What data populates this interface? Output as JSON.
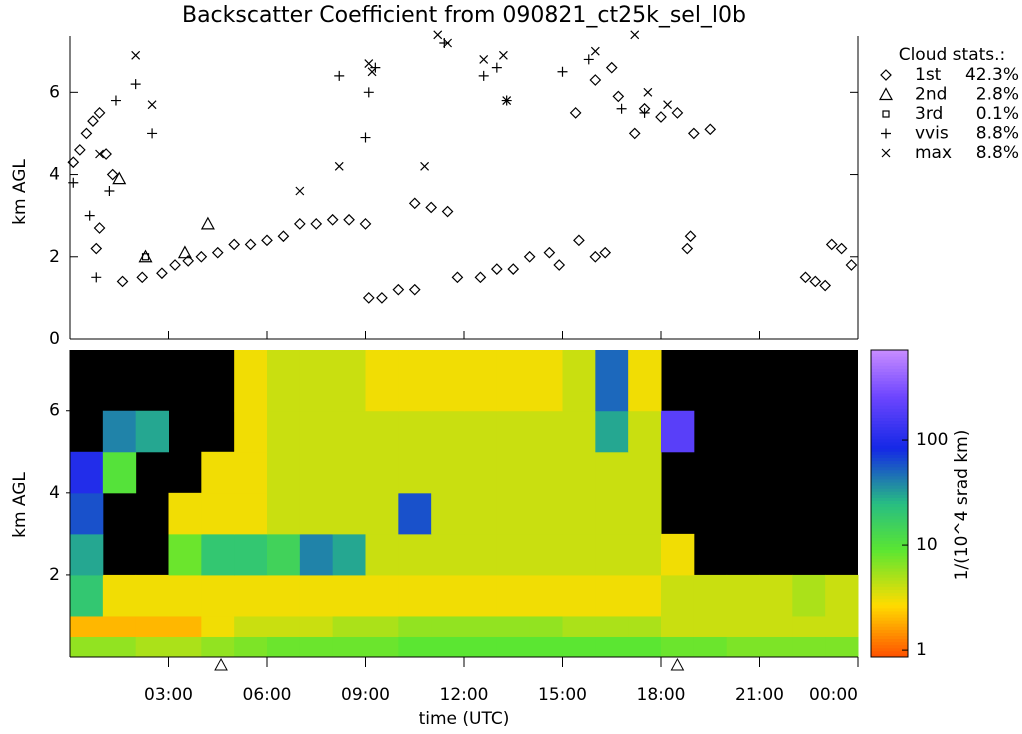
{
  "chart_data": [
    {
      "type": "scatter",
      "title": "Backscatter Coefficient from 090821_ct25k_sel_l0b",
      "ylabel": "km AGL",
      "xlim": [
        0,
        24
      ],
      "ylim": [
        0,
        7.37
      ],
      "yticks": [
        0,
        2,
        4,
        6
      ],
      "legend_title": "Cloud stats.:",
      "series": [
        {
          "name": "1st",
          "marker": "diamond",
          "share": "42.3%",
          "color": "#000000",
          "x": [
            0.1,
            0.3,
            0.5,
            0.7,
            0.9,
            1.1,
            1.3,
            0.8,
            0.9,
            1.6,
            2.2,
            2.8,
            3.2,
            3.6,
            4.0,
            4.5,
            5.0,
            5.5,
            6.0,
            6.5,
            7.0,
            7.5,
            8.0,
            8.5,
            9.0,
            9.1,
            9.5,
            10.0,
            10.5,
            10.5,
            11.0,
            11.5,
            11.8,
            12.5,
            13.0,
            13.5,
            14.0,
            14.6,
            14.9,
            15.5,
            16.0,
            16.3,
            15.4,
            16.0,
            16.5,
            16.7,
            17.2,
            17.5,
            18.0,
            18.5,
            19.0,
            19.5,
            18.8,
            18.9,
            22.4,
            22.7,
            23.0,
            23.2,
            23.5,
            23.8
          ],
          "y": [
            4.3,
            4.6,
            5.0,
            5.3,
            5.5,
            4.5,
            4.0,
            2.2,
            2.7,
            1.4,
            1.5,
            1.6,
            1.8,
            1.9,
            2.0,
            2.1,
            2.3,
            2.3,
            2.4,
            2.5,
            2.8,
            2.8,
            2.9,
            2.9,
            2.8,
            1.0,
            1.0,
            1.2,
            1.2,
            3.3,
            3.2,
            3.1,
            1.5,
            1.5,
            1.7,
            1.7,
            2.0,
            2.1,
            1.8,
            2.4,
            2.0,
            2.1,
            5.5,
            6.3,
            6.6,
            5.9,
            5.0,
            5.6,
            5.4,
            5.5,
            5.0,
            5.1,
            2.2,
            2.5,
            1.5,
            1.4,
            1.3,
            2.3,
            2.2,
            1.8
          ]
        },
        {
          "name": "2nd",
          "marker": "triangle",
          "share": "2.8%",
          "color": "#000000",
          "x": [
            1.5,
            2.3,
            3.5,
            4.2
          ],
          "y": [
            3.9,
            2.0,
            2.1,
            2.8
          ]
        },
        {
          "name": "3rd",
          "marker": "square",
          "share": "0.1%",
          "color": "#000000",
          "x": [
            2.3
          ],
          "y": [
            2.0
          ]
        },
        {
          "name": "vvis",
          "marker": "plus",
          "share": "8.8%",
          "color": "#000000",
          "x": [
            0.1,
            0.6,
            0.8,
            1.2,
            1.4,
            2.0,
            2.5,
            8.2,
            9.0,
            9.1,
            9.3,
            11.4,
            12.6,
            13.0,
            13.3,
            15.0,
            15.8,
            16.8,
            17.5
          ],
          "y": [
            3.8,
            3.0,
            1.5,
            3.6,
            5.8,
            6.2,
            5.0,
            6.4,
            4.9,
            6.0,
            6.6,
            7.2,
            6.4,
            6.6,
            5.8,
            6.5,
            6.8,
            5.6,
            5.5
          ]
        },
        {
          "name": "max",
          "marker": "cross",
          "share": "8.8%",
          "color": "#000000",
          "x": [
            0.9,
            2.0,
            2.5,
            7.0,
            8.2,
            9.1,
            9.2,
            10.8,
            11.2,
            11.5,
            12.6,
            13.2,
            13.3,
            16.0,
            17.2,
            17.6,
            18.2
          ],
          "y": [
            4.5,
            6.9,
            5.7,
            3.6,
            4.2,
            6.7,
            6.5,
            4.2,
            7.4,
            7.2,
            6.8,
            6.9,
            5.8,
            7.0,
            7.4,
            6.0,
            5.7
          ]
        }
      ]
    },
    {
      "type": "heatmap",
      "ylabel": "km AGL",
      "xlabel": "time (UTC)",
      "xlim": [
        0,
        24
      ],
      "ylim": [
        0,
        7.48
      ],
      "yticks": [
        2,
        4,
        6
      ],
      "xticks": [
        {
          "value": 3,
          "label": "03:00"
        },
        {
          "value": 6,
          "label": "06:00"
        },
        {
          "value": 9,
          "label": "09:00"
        },
        {
          "value": 12,
          "label": "12:00"
        },
        {
          "value": 15,
          "label": "15:00"
        },
        {
          "value": 18,
          "label": "18:00"
        },
        {
          "value": 21,
          "label": "21:00"
        },
        {
          "value": 24,
          "label": "00:00"
        }
      ],
      "xbins": [
        0,
        1,
        2,
        3,
        4,
        5,
        6,
        7,
        8,
        9,
        10,
        11,
        12,
        13,
        14,
        15,
        16,
        17,
        18,
        19,
        20,
        21,
        22,
        23,
        24
      ],
      "ybins": [
        0,
        0.5,
        1,
        2,
        3,
        4,
        5,
        6,
        7.48
      ],
      "z": [
        [
          6,
          6,
          5,
          5,
          6,
          7,
          8,
          8,
          8,
          8,
          9,
          9,
          9,
          9,
          9,
          9,
          9,
          9,
          8,
          8,
          7,
          7,
          7,
          7
        ],
        [
          2,
          2,
          2,
          2,
          3,
          4,
          4,
          4,
          5,
          5,
          6,
          6,
          6,
          6,
          6,
          5,
          5,
          5,
          4,
          4,
          4,
          4,
          4,
          4
        ],
        [
          20,
          3,
          3,
          3,
          3,
          3,
          3,
          3,
          3,
          3,
          3,
          3,
          3,
          3,
          3,
          3,
          3,
          3,
          4,
          4,
          4,
          4,
          5,
          4
        ],
        [
          30,
          null,
          null,
          8,
          20,
          20,
          15,
          40,
          30,
          4,
          4,
          4,
          4,
          4,
          4,
          4,
          4,
          4,
          3,
          null,
          null,
          null,
          null,
          null
        ],
        [
          60,
          null,
          null,
          3,
          3,
          3,
          4,
          4,
          4,
          4,
          60,
          4,
          4,
          4,
          4,
          4,
          4,
          4,
          null,
          null,
          null,
          null,
          null,
          null
        ],
        [
          100,
          10,
          null,
          null,
          3,
          3,
          4,
          4,
          4,
          4,
          4,
          4,
          4,
          4,
          4,
          4,
          4,
          4,
          null,
          null,
          null,
          null,
          null,
          null
        ],
        [
          null,
          40,
          30,
          null,
          null,
          3,
          4,
          4,
          4,
          4,
          4,
          4,
          4,
          4,
          4,
          4,
          30,
          4,
          200,
          null,
          null,
          null,
          null,
          null
        ],
        [
          null,
          null,
          null,
          null,
          null,
          3,
          4,
          4,
          4,
          3,
          3,
          3,
          3,
          3,
          3,
          4,
          50,
          3,
          null,
          null,
          null,
          null,
          null,
          null
        ]
      ],
      "markers": [
        4.6,
        18.5
      ],
      "colorbar": {
        "label": "1/(10^4 srad km)",
        "log": true,
        "lim": [
          0.86,
          720
        ],
        "ticks": [
          1,
          10,
          100
        ]
      }
    }
  ]
}
